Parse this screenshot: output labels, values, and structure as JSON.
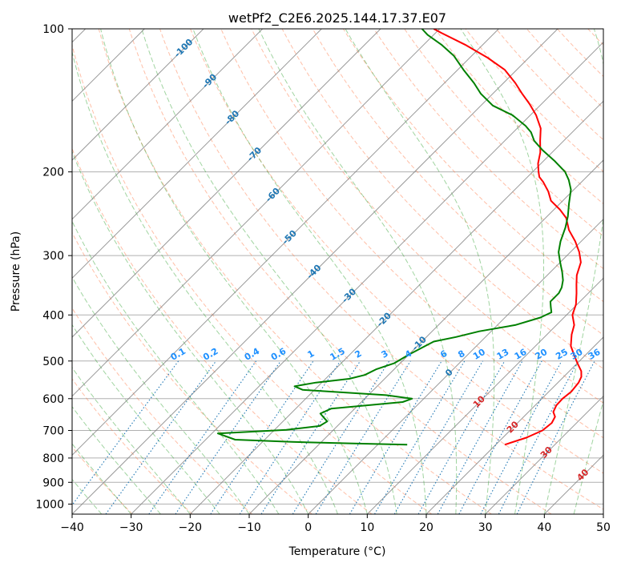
{
  "chart_data": {
    "type": "skew-t",
    "title": "wetPf2_C2E6.2025.144.17.37.E07",
    "xlabel": "Temperature (°C)",
    "ylabel": "Pressure (hPa)",
    "xlim": [
      -40,
      50
    ],
    "ylim": [
      1050,
      100
    ],
    "x_ticks": [
      "−40",
      "−30",
      "−20",
      "−10",
      "0",
      "10",
      "20",
      "30",
      "40",
      "50"
    ],
    "y_ticks": [
      "100",
      "200",
      "300",
      "400",
      "500",
      "600",
      "700",
      "800",
      "900",
      "1000"
    ],
    "y_scale": "log",
    "grid": true,
    "series": [
      {
        "role": "temperature",
        "color": "#ff0000",
        "points": [
          [
            21.5,
            750
          ],
          [
            24,
            725
          ],
          [
            25.5,
            700
          ],
          [
            25.8,
            675
          ],
          [
            25.3,
            655
          ],
          [
            24.2,
            640
          ],
          [
            23.6,
            620
          ],
          [
            23.5,
            600
          ],
          [
            23.8,
            580
          ],
          [
            23.5,
            555
          ],
          [
            23,
            540
          ],
          [
            22,
            525
          ],
          [
            20,
            505
          ],
          [
            18.5,
            490
          ],
          [
            16,
            465
          ],
          [
            14.2,
            440
          ],
          [
            13,
            420
          ],
          [
            11,
            400
          ],
          [
            9.8,
            380
          ],
          [
            8,
            360
          ],
          [
            6.5,
            345
          ],
          [
            5,
            330
          ],
          [
            3.5,
            310
          ],
          [
            1.5,
            295
          ],
          [
            -1,
            280
          ],
          [
            -4,
            265
          ],
          [
            -6.5,
            250
          ],
          [
            -9,
            240
          ],
          [
            -12,
            230
          ],
          [
            -14,
            220
          ],
          [
            -16.5,
            210
          ],
          [
            -18,
            205
          ],
          [
            -19,
            200
          ],
          [
            -20.5,
            192
          ],
          [
            -22,
            182
          ],
          [
            -24,
            172
          ],
          [
            -26,
            162
          ],
          [
            -29,
            152
          ],
          [
            -32,
            144
          ],
          [
            -35,
            137
          ],
          [
            -38,
            130
          ],
          [
            -42,
            122
          ],
          [
            -47,
            115
          ],
          [
            -53,
            108
          ],
          [
            -59,
            102
          ],
          [
            -61,
            100
          ]
        ]
      },
      {
        "role": "dewpoint",
        "color": "#008000",
        "points": [
          [
            5,
            750
          ],
          [
            -5,
            745
          ],
          [
            -15,
            740
          ],
          [
            -25,
            732
          ],
          [
            -29,
            710
          ],
          [
            -18,
            698
          ],
          [
            -13,
            685
          ],
          [
            -12.5,
            670
          ],
          [
            -14,
            655
          ],
          [
            -15,
            645
          ],
          [
            -14,
            630
          ],
          [
            -3,
            610
          ],
          [
            -2,
            600
          ],
          [
            -7,
            590
          ],
          [
            -22,
            575
          ],
          [
            -24,
            565
          ],
          [
            -21,
            555
          ],
          [
            -16,
            545
          ],
          [
            -14,
            535
          ],
          [
            -13,
            520
          ],
          [
            -11,
            505
          ],
          [
            -10,
            485
          ],
          [
            -9,
            470
          ],
          [
            -8,
            455
          ],
          [
            -5,
            445
          ],
          [
            -2,
            433
          ],
          [
            3,
            420
          ],
          [
            6,
            405
          ],
          [
            7,
            395
          ],
          [
            6,
            385
          ],
          [
            5,
            375
          ],
          [
            5,
            360
          ],
          [
            4.5,
            350
          ],
          [
            3.5,
            338
          ],
          [
            2,
            325
          ],
          [
            0,
            310
          ],
          [
            -2,
            295
          ],
          [
            -3.5,
            280
          ],
          [
            -5,
            262
          ],
          [
            -6.5,
            248
          ],
          [
            -8.5,
            233
          ],
          [
            -10.5,
            218
          ],
          [
            -12.5,
            208
          ],
          [
            -14.5,
            200
          ],
          [
            -18,
            190
          ],
          [
            -22,
            180
          ],
          [
            -25,
            172
          ],
          [
            -27,
            165
          ],
          [
            -29,
            160
          ],
          [
            -33,
            152
          ],
          [
            -38,
            145
          ],
          [
            -42,
            137
          ],
          [
            -45,
            130
          ],
          [
            -49,
            122
          ],
          [
            -53,
            114
          ],
          [
            -57,
            108
          ],
          [
            -61,
            103
          ],
          [
            -63,
            100
          ]
        ]
      }
    ],
    "isotherm_labels": [
      {
        "text": "-100",
        "p": 110,
        "t": -100
      },
      {
        "text": "-90",
        "p": 129,
        "t": -90
      },
      {
        "text": "-80",
        "p": 154,
        "t": -80
      },
      {
        "text": "-70",
        "p": 184,
        "t": -70
      },
      {
        "text": "-60",
        "p": 224,
        "t": -60
      },
      {
        "text": "-50",
        "p": 275,
        "t": -50
      },
      {
        "text": "-40",
        "p": 325,
        "t": -40
      },
      {
        "text": "-30",
        "p": 365,
        "t": -30
      },
      {
        "text": "-20",
        "p": 410,
        "t": -20
      },
      {
        "text": "-10",
        "p": 460,
        "t": -10
      },
      {
        "text": "0",
        "p": 530,
        "t": 0
      },
      {
        "text": "10",
        "p": 610,
        "t": 10
      },
      {
        "text": "20",
        "p": 690,
        "t": 20
      },
      {
        "text": "30",
        "p": 780,
        "t": 30
      },
      {
        "text": "40",
        "p": 870,
        "t": 40
      }
    ],
    "mixing_ratio_labels": [
      "0.1",
      "0.2",
      "0.4",
      "0.6",
      "1",
      "1.5",
      "2",
      "3",
      "4",
      "6",
      "8",
      "10",
      "13",
      "16",
      "20",
      "25",
      "30",
      "36"
    ],
    "mixing_ratio_label_x": [
      -22,
      -16.5,
      -9.5,
      -5,
      0.5,
      5,
      8.5,
      13,
      17,
      23,
      26,
      29,
      33,
      36,
      39.5,
      43,
      45.5,
      48.5
    ],
    "colors": {
      "temperature": "#ff0000",
      "dewpoint": "#008000",
      "isotherm": "#808080",
      "dry_adiabat": "#ff7f50",
      "moist_adiabat": "#2ca02c",
      "mixing_ratio": "#1f77b4",
      "label_cold": "#1f77b4",
      "label_warm": "#d62728",
      "mixing_label": "#1e90ff"
    }
  }
}
